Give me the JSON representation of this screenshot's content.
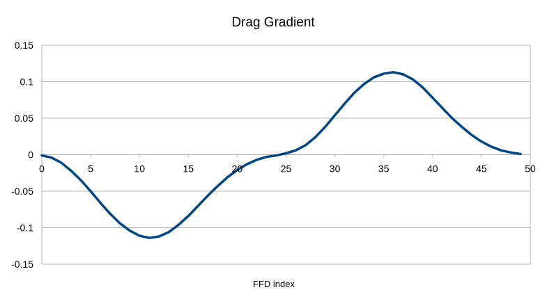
{
  "chart_data": {
    "type": "line",
    "title": "Drag Gradient",
    "xlabel": "FFD index",
    "ylabel": "",
    "xlim": [
      0,
      50
    ],
    "ylim": [
      -0.15,
      0.15
    ],
    "xticks": [
      0,
      5,
      10,
      15,
      20,
      25,
      30,
      35,
      40,
      45,
      50
    ],
    "yticks": [
      0.15,
      0.1,
      0.05,
      0,
      -0.05,
      -0.1,
      -0.15
    ],
    "grid": "horizontal",
    "legend": "none",
    "colors": {
      "series_line": "#004586",
      "grid": "#b3b3b3",
      "axis": "#b3b3b3"
    },
    "series": [
      {
        "x": [
          0,
          1,
          2,
          3,
          4,
          5,
          6,
          7,
          8,
          9,
          10,
          11,
          12,
          13,
          14,
          15,
          16,
          17,
          18,
          19,
          20,
          21,
          22,
          23,
          24,
          25,
          26,
          27,
          28,
          29,
          30,
          31,
          32,
          33,
          34,
          35,
          36,
          37,
          38,
          39,
          40,
          41,
          42,
          43,
          44,
          45,
          46,
          47,
          48,
          49
        ],
        "values": [
          -0.001,
          -0.004,
          -0.011,
          -0.022,
          -0.035,
          -0.05,
          -0.066,
          -0.081,
          -0.094,
          -0.104,
          -0.111,
          -0.114,
          -0.112,
          -0.106,
          -0.096,
          -0.084,
          -0.07,
          -0.056,
          -0.043,
          -0.031,
          -0.021,
          -0.013,
          -0.007,
          -0.003,
          -0.001,
          0.002,
          0.006,
          0.013,
          0.024,
          0.038,
          0.054,
          0.07,
          0.085,
          0.097,
          0.106,
          0.111,
          0.113,
          0.11,
          0.103,
          0.092,
          0.078,
          0.064,
          0.05,
          0.038,
          0.027,
          0.018,
          0.011,
          0.006,
          0.003,
          0.001
        ]
      }
    ]
  }
}
